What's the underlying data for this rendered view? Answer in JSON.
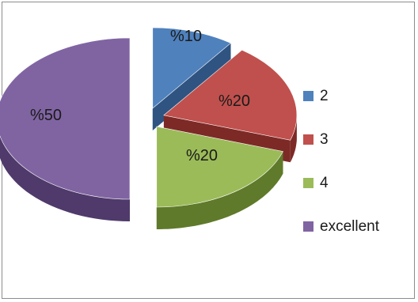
{
  "chart_data": {
    "type": "pie",
    "title": "",
    "style": "3d-exploded",
    "legend_position": "right",
    "slices": [
      {
        "label": "2",
        "value": 10,
        "data_label": "%10",
        "color": "#4f81bd",
        "side_color": "#2f5481"
      },
      {
        "label": "3",
        "value": 20,
        "data_label": "%20",
        "color": "#c0504d",
        "side_color": "#7d2a27"
      },
      {
        "label": "4",
        "value": 20,
        "data_label": "%20",
        "color": "#9bbb59",
        "side_color": "#5f7a2a"
      },
      {
        "label": "excellent",
        "value": 50,
        "data_label": "%50",
        "color": "#8064a2",
        "side_color": "#4f3a6b"
      }
    ]
  }
}
